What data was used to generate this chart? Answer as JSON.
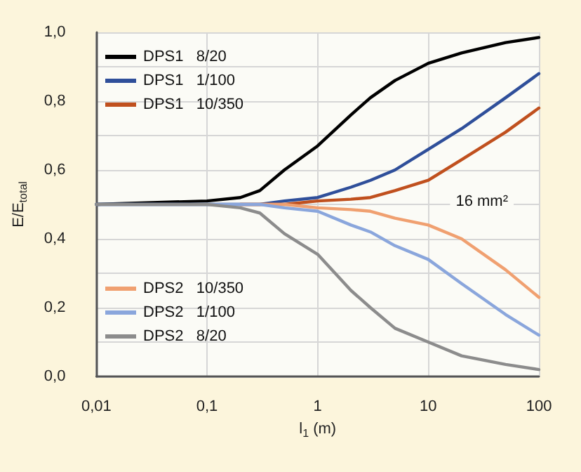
{
  "chart_data": {
    "type": "line",
    "xlabel": "l$_{1}$ (m)",
    "ylabel": "E/E$_{total}$",
    "log": "x",
    "xlim": [
      0.01,
      100
    ],
    "xticks": [
      {
        "value": 0.01,
        "label": "0,01"
      },
      {
        "value": 0.1,
        "label": "0,1"
      },
      {
        "value": 1,
        "label": "1"
      },
      {
        "value": 10,
        "label": "10"
      },
      {
        "value": 100,
        "label": "100"
      }
    ],
    "ylim": [
      0,
      1
    ],
    "yticks": [
      {
        "value": 0,
        "label": "0,0"
      },
      {
        "value": 0.1,
        "label": null
      },
      {
        "value": 0.2,
        "label": "0,2"
      },
      {
        "value": 0.3,
        "label": null
      },
      {
        "value": 0.4,
        "label": "0,4"
      },
      {
        "value": 0.5,
        "label": null
      },
      {
        "value": 0.6,
        "label": "0,6"
      },
      {
        "value": 0.7,
        "label": null
      },
      {
        "value": 0.8,
        "label": "0,8"
      },
      {
        "value": 0.9,
        "label": null
      },
      {
        "value": 1,
        "label": "1,0"
      }
    ],
    "grid": true,
    "legend": "left",
    "marker": "none",
    "line_style": "solid",
    "annotations": [
      "16 mm²"
    ],
    "x": [
      0.01,
      0.1,
      0.2,
      0.3,
      0.5,
      1,
      2,
      3,
      5,
      10,
      20,
      50,
      100
    ],
    "series": [
      {
        "name": "DPS1   8/20",
        "color": "#000000",
        "values": [
          0.5,
          0.51,
          0.52,
          0.54,
          0.6,
          0.67,
          0.76,
          0.81,
          0.86,
          0.91,
          0.94,
          0.97,
          0.985
        ]
      },
      {
        "name": "DPS1   1/100",
        "color": "#2f4f9a",
        "values": [
          0.5,
          0.5,
          0.5,
          0.5,
          0.51,
          0.52,
          0.55,
          0.57,
          0.6,
          0.66,
          0.72,
          0.81,
          0.88
        ]
      },
      {
        "name": "DPS1   10/350",
        "color": "#c0501e",
        "values": [
          null,
          null,
          0.5,
          0.5,
          0.5,
          0.51,
          0.515,
          0.52,
          0.54,
          0.57,
          0.63,
          0.71,
          0.78
        ]
      },
      {
        "name": "DPS2   10/350",
        "color": "#f0a070",
        "values": [
          null,
          null,
          0.5,
          0.5,
          0.5,
          0.49,
          0.485,
          0.48,
          0.46,
          0.44,
          0.4,
          0.31,
          0.23
        ]
      },
      {
        "name": "DPS2   1/100",
        "color": "#8aa6dc",
        "values": [
          0.5,
          0.5,
          0.5,
          0.5,
          0.49,
          0.48,
          0.44,
          0.42,
          0.38,
          0.34,
          0.27,
          0.18,
          0.12
        ]
      },
      {
        "name": "DPS2   8/20",
        "color": "#8c8c8c",
        "values": [
          0.5,
          0.5,
          0.49,
          0.475,
          0.415,
          0.355,
          0.25,
          0.2,
          0.14,
          0.1,
          0.06,
          0.035,
          0.02
        ]
      }
    ]
  }
}
